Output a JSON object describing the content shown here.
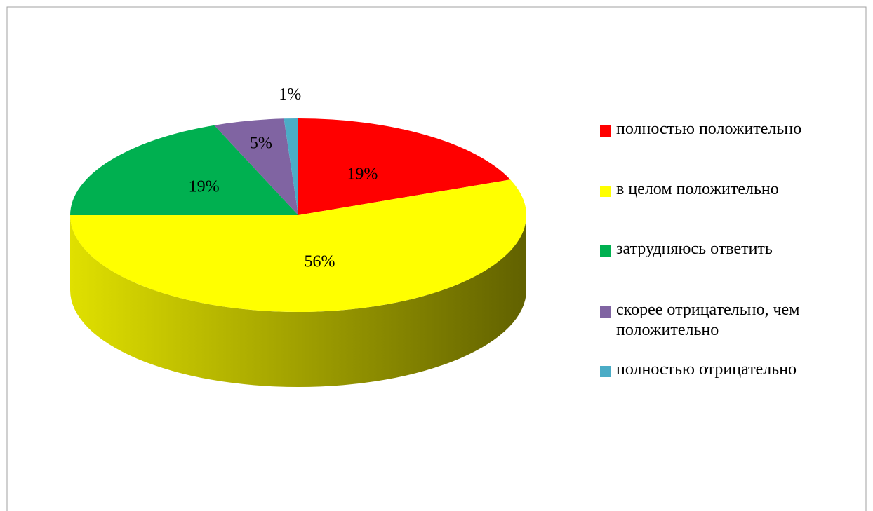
{
  "chart_data": {
    "type": "pie",
    "categories": [
      "полностью положительно",
      "в целом положительно",
      "затрудняюсь ответить",
      "скорее отрицательно, чем положительно",
      "полностью отрицательно"
    ],
    "values": [
      19,
      56,
      19,
      5,
      1
    ],
    "value_labels": [
      "19%",
      "56%",
      "19%",
      "5%",
      "1%"
    ],
    "colors": [
      "#ff0000",
      "#ffff00",
      "#00b050",
      "#8064a2",
      "#4bacc6"
    ],
    "legend": "right"
  }
}
